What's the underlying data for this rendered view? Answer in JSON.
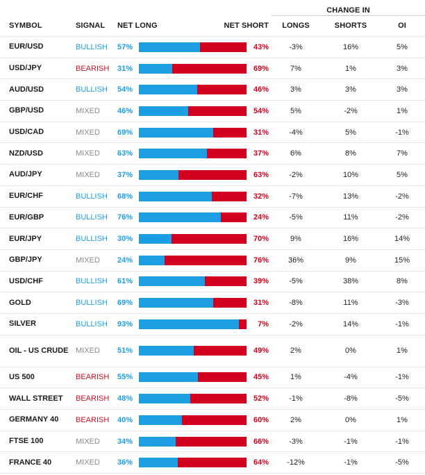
{
  "headers": {
    "symbol": "SYMBOL",
    "signal": "SIGNAL",
    "net_long": "NET LONG",
    "net_short": "NET SHORT",
    "change_in": "CHANGE IN",
    "longs": "LONGS",
    "shorts": "SHORTS",
    "oi": "OI"
  },
  "colors": {
    "long": "#1d9ee3",
    "short": "#d2001e",
    "bullish": "#1d9ee3",
    "bearish": "#cc1126",
    "mixed": "#8a8a8a"
  },
  "rows": [
    {
      "symbol": "EUR/USD",
      "signal": "BULLISH",
      "net_long": "57%",
      "long_pct": 57,
      "net_short": "43%",
      "longs": "-3%",
      "shorts": "16%",
      "oi": "5%"
    },
    {
      "symbol": "USD/JPY",
      "signal": "BEARISH",
      "net_long": "31%",
      "long_pct": 31,
      "net_short": "69%",
      "longs": "7%",
      "shorts": "1%",
      "oi": "3%"
    },
    {
      "symbol": "AUD/USD",
      "signal": "BULLISH",
      "net_long": "54%",
      "long_pct": 54,
      "net_short": "46%",
      "longs": "3%",
      "shorts": "3%",
      "oi": "3%"
    },
    {
      "symbol": "GBP/USD",
      "signal": "MIXED",
      "net_long": "46%",
      "long_pct": 46,
      "net_short": "54%",
      "longs": "5%",
      "shorts": "-2%",
      "oi": "1%"
    },
    {
      "symbol": "USD/CAD",
      "signal": "MIXED",
      "net_long": "69%",
      "long_pct": 69,
      "net_short": "31%",
      "longs": "-4%",
      "shorts": "5%",
      "oi": "-1%"
    },
    {
      "symbol": "NZD/USD",
      "signal": "MIXED",
      "net_long": "63%",
      "long_pct": 63,
      "net_short": "37%",
      "longs": "6%",
      "shorts": "8%",
      "oi": "7%"
    },
    {
      "symbol": "AUD/JPY",
      "signal": "MIXED",
      "net_long": "37%",
      "long_pct": 37,
      "net_short": "63%",
      "longs": "-2%",
      "shorts": "10%",
      "oi": "5%"
    },
    {
      "symbol": "EUR/CHF",
      "signal": "BULLISH",
      "net_long": "68%",
      "long_pct": 68,
      "net_short": "32%",
      "longs": "-7%",
      "shorts": "13%",
      "oi": "-2%"
    },
    {
      "symbol": "EUR/GBP",
      "signal": "BULLISH",
      "net_long": "76%",
      "long_pct": 76,
      "net_short": "24%",
      "longs": "-5%",
      "shorts": "11%",
      "oi": "-2%"
    },
    {
      "symbol": "EUR/JPY",
      "signal": "BULLISH",
      "net_long": "30%",
      "long_pct": 30,
      "net_short": "70%",
      "longs": "9%",
      "shorts": "16%",
      "oi": "14%"
    },
    {
      "symbol": "GBP/JPY",
      "signal": "MIXED",
      "net_long": "24%",
      "long_pct": 24,
      "net_short": "76%",
      "longs": "36%",
      "shorts": "9%",
      "oi": "15%"
    },
    {
      "symbol": "USD/CHF",
      "signal": "BULLISH",
      "net_long": "61%",
      "long_pct": 61,
      "net_short": "39%",
      "longs": "-5%",
      "shorts": "38%",
      "oi": "8%"
    },
    {
      "symbol": "GOLD",
      "signal": "BULLISH",
      "net_long": "69%",
      "long_pct": 69,
      "net_short": "31%",
      "longs": "-8%",
      "shorts": "11%",
      "oi": "-3%"
    },
    {
      "symbol": "SILVER",
      "signal": "BULLISH",
      "net_long": "93%",
      "long_pct": 93,
      "net_short": "7%",
      "longs": "-2%",
      "shorts": "14%",
      "oi": "-1%"
    },
    {
      "symbol": "OIL - US CRUDE",
      "signal": "MIXED",
      "net_long": "51%",
      "long_pct": 51,
      "net_short": "49%",
      "longs": "2%",
      "shorts": "0%",
      "oi": "1%"
    },
    {
      "symbol": "US 500",
      "signal": "BEARISH",
      "net_long": "55%",
      "long_pct": 55,
      "net_short": "45%",
      "longs": "1%",
      "shorts": "-4%",
      "oi": "-1%"
    },
    {
      "symbol": "WALL STREET",
      "signal": "BEARISH",
      "net_long": "48%",
      "long_pct": 48,
      "net_short": "52%",
      "longs": "-1%",
      "shorts": "-8%",
      "oi": "-5%"
    },
    {
      "symbol": "GERMANY 40",
      "signal": "BEARISH",
      "net_long": "40%",
      "long_pct": 40,
      "net_short": "60%",
      "longs": "2%",
      "shorts": "0%",
      "oi": "1%"
    },
    {
      "symbol": "FTSE 100",
      "signal": "MIXED",
      "net_long": "34%",
      "long_pct": 34,
      "net_short": "66%",
      "longs": "-3%",
      "shorts": "-1%",
      "oi": "-1%"
    },
    {
      "symbol": "FRANCE 40",
      "signal": "MIXED",
      "net_long": "36%",
      "long_pct": 36,
      "net_short": "64%",
      "longs": "-12%",
      "shorts": "-1%",
      "oi": "-5%"
    }
  ]
}
